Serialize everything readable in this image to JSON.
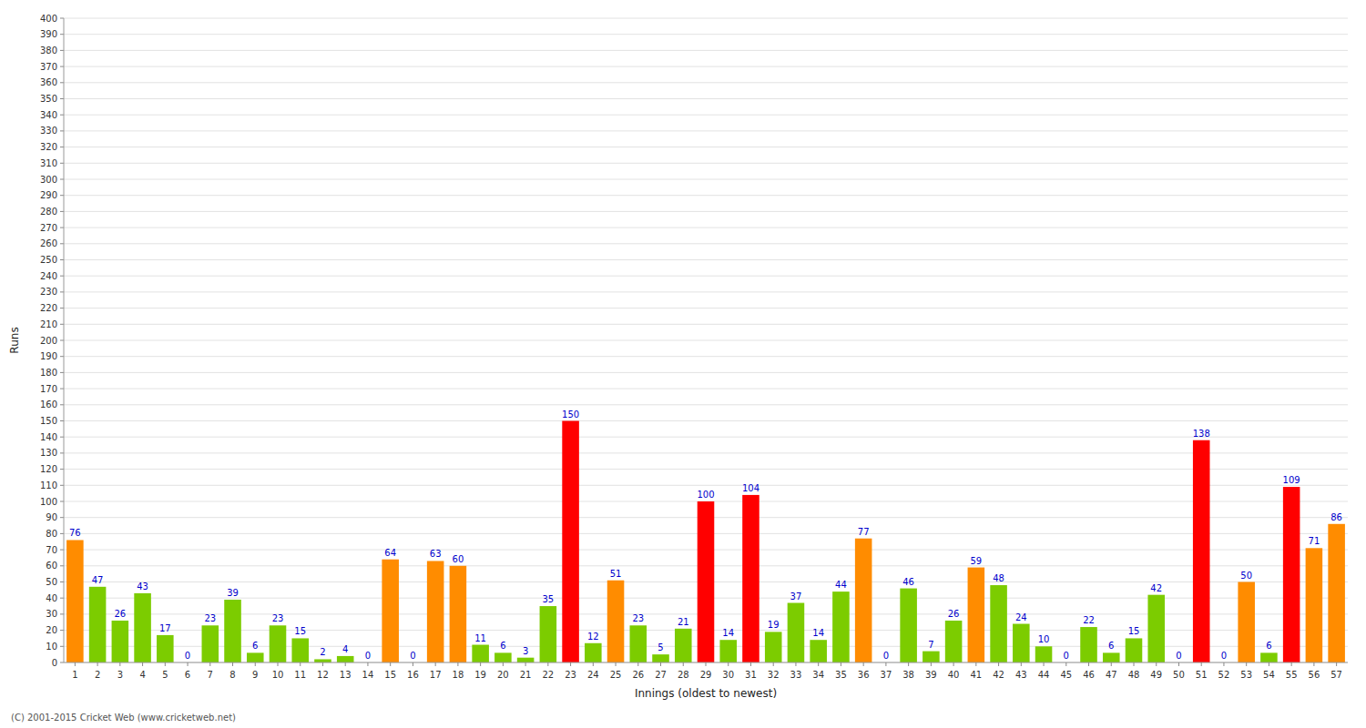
{
  "chart_data": {
    "type": "bar",
    "categories": [
      "1",
      "2",
      "3",
      "4",
      "5",
      "6",
      "7",
      "8",
      "9",
      "10",
      "11",
      "12",
      "13",
      "14",
      "15",
      "16",
      "17",
      "18",
      "19",
      "20",
      "21",
      "22",
      "23",
      "24",
      "25",
      "26",
      "27",
      "28",
      "29",
      "30",
      "31",
      "32",
      "33",
      "34",
      "35",
      "36",
      "37",
      "38",
      "39",
      "40",
      "41",
      "42",
      "43",
      "44",
      "45",
      "46",
      "47",
      "48",
      "49",
      "50",
      "51",
      "52",
      "53",
      "54",
      "55",
      "56",
      "57"
    ],
    "values": [
      76,
      47,
      26,
      43,
      17,
      0,
      23,
      39,
      6,
      23,
      15,
      2,
      4,
      0,
      64,
      0,
      63,
      60,
      11,
      6,
      3,
      35,
      150,
      12,
      51,
      23,
      5,
      21,
      100,
      14,
      104,
      19,
      37,
      14,
      44,
      77,
      0,
      46,
      7,
      26,
      59,
      48,
      24,
      10,
      0,
      22,
      6,
      15,
      42,
      0,
      138,
      0,
      50,
      6,
      109,
      71,
      86
    ],
    "colors": [
      "#ff8c00",
      "#7ccc00",
      "#7ccc00",
      "#7ccc00",
      "#7ccc00",
      "#7ccc00",
      "#7ccc00",
      "#7ccc00",
      "#7ccc00",
      "#7ccc00",
      "#7ccc00",
      "#7ccc00",
      "#7ccc00",
      "#7ccc00",
      "#ff8c00",
      "#7ccc00",
      "#ff8c00",
      "#ff8c00",
      "#7ccc00",
      "#7ccc00",
      "#7ccc00",
      "#7ccc00",
      "#ff0000",
      "#7ccc00",
      "#ff8c00",
      "#7ccc00",
      "#7ccc00",
      "#7ccc00",
      "#ff0000",
      "#7ccc00",
      "#ff0000",
      "#7ccc00",
      "#7ccc00",
      "#7ccc00",
      "#7ccc00",
      "#ff8c00",
      "#7ccc00",
      "#7ccc00",
      "#7ccc00",
      "#7ccc00",
      "#ff8c00",
      "#7ccc00",
      "#7ccc00",
      "#7ccc00",
      "#7ccc00",
      "#7ccc00",
      "#7ccc00",
      "#7ccc00",
      "#7ccc00",
      "#7ccc00",
      "#ff0000",
      "#7ccc00",
      "#ff8c00",
      "#7ccc00",
      "#ff0000",
      "#ff8c00",
      "#ff8c00"
    ],
    "xlabel": "Innings (oldest to newest)",
    "ylabel": "Runs",
    "ylim": [
      0,
      400
    ],
    "yticks": [
      0,
      10,
      20,
      30,
      40,
      50,
      60,
      70,
      80,
      90,
      100,
      110,
      120,
      130,
      140,
      150,
      160,
      170,
      180,
      190,
      200,
      210,
      220,
      230,
      240,
      250,
      260,
      270,
      280,
      290,
      300,
      310,
      320,
      330,
      340,
      350,
      360,
      370,
      380,
      390,
      400
    ],
    "grid": true,
    "data_labels": true,
    "annotations": [
      "(C) 2001-2015 Cricket Web (www.cricketweb.net)"
    ]
  }
}
